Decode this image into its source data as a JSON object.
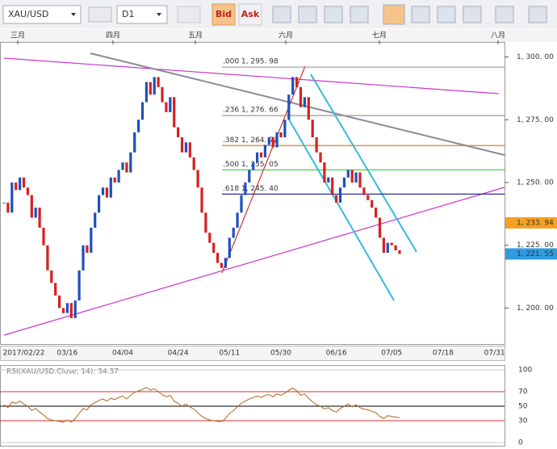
{
  "toolbar": {
    "symbol": "XAU/USD",
    "timeframe": "D1",
    "bid": "Bid",
    "ask": "Ask"
  },
  "chart_data": {
    "type": "candlestick",
    "months": [
      "三月",
      "四月",
      "五月",
      "六月",
      "七月",
      "八月"
    ],
    "categories": [
      null,
      null,
      null,
      null,
      null,
      "2017/02/22",
      null,
      null,
      null,
      null,
      null,
      null,
      null,
      null,
      null,
      null,
      "03/16",
      null,
      null,
      null,
      null,
      null,
      null,
      null,
      null,
      null,
      null,
      null,
      null,
      null,
      "04/04",
      null,
      null,
      null,
      null,
      null,
      null,
      null,
      null,
      null,
      null,
      null,
      null,
      null,
      "04/24",
      null,
      null,
      null,
      null,
      null,
      null,
      null,
      null,
      null,
      null,
      null,
      null,
      "05/11",
      null,
      null,
      null,
      null,
      null,
      null,
      null,
      null,
      null,
      null,
      null,
      null,
      "05/30",
      null,
      null,
      null,
      null,
      null,
      null,
      null,
      null,
      null,
      null,
      null,
      null,
      null,
      "06/16",
      null,
      null,
      null,
      null,
      null,
      null,
      null,
      null,
      null,
      null,
      null,
      null,
      null,
      "07/05",
      null,
      null,
      null,
      null,
      null,
      null,
      null,
      null,
      null,
      null,
      null,
      null,
      "07/18",
      null,
      null,
      null,
      null,
      null,
      null,
      null,
      null,
      null,
      null,
      null,
      null,
      "07/31",
      null
    ],
    "close": [
      1242,
      1238,
      1250,
      1247,
      1252,
      1248,
      1245,
      1236,
      1240,
      1232,
      1225,
      1215,
      1210,
      1205,
      1200,
      1198,
      1202,
      1196,
      1203,
      1215,
      1225,
      1222,
      1232,
      1238,
      1245,
      1248,
      1244,
      1252,
      1250,
      1255,
      1258,
      1254,
      1262,
      1270,
      1275,
      1282,
      1290,
      1285,
      1292,
      1288,
      1282,
      1278,
      1284,
      1272,
      1268,
      1262,
      1266,
      1260,
      1255,
      1248,
      1238,
      1230,
      1226,
      1222,
      1218,
      1216,
      1220,
      1228,
      1232,
      1238,
      1245,
      1250,
      1255,
      1258,
      1262,
      1260,
      1265,
      1268,
      1264,
      1270,
      1268,
      1275,
      1285,
      1292,
      1288,
      1280,
      1284,
      1275,
      1268,
      1262,
      1258,
      1250,
      1252,
      1245,
      1242,
      1248,
      1252,
      1255,
      1250,
      1254,
      1248,
      1245,
      1243,
      1240,
      1236,
      1228,
      1222,
      1226,
      1225,
      1223,
      1221.55,
      null,
      null,
      null,
      null,
      null,
      null,
      null,
      null,
      null,
      null,
      null,
      null,
      null,
      null,
      null,
      null,
      null,
      null,
      null,
      null,
      null,
      null,
      null,
      null,
      null
    ],
    "ylim": [
      1186,
      1305
    ],
    "yticks": [
      {
        "value": 1200,
        "label": "1, 200. 00"
      },
      {
        "value": 1225,
        "label": "1, 225. 00"
      },
      {
        "value": 1250,
        "label": "1, 250. 00"
      },
      {
        "value": 1275,
        "label": "1, 275. 00"
      },
      {
        "value": 1300,
        "label": "1, 300. 00"
      }
    ],
    "up_color": "#1f4fbf",
    "down_color": "#d62020",
    "fib_levels": [
      {
        "label": ".000 1, 295. 98",
        "value": 1295.98,
        "color": "#999999"
      },
      {
        "label": ".236 1, 276. 66",
        "value": 1276.66,
        "color": "#999999"
      },
      {
        "label": ".382 1, 264. 71",
        "value": 1264.71,
        "color": "#e07b1a"
      },
      {
        "label": ".500 1, 255. 05",
        "value": 1255.05,
        "color": "#33cc33"
      },
      {
        "label": ".618 1, 245. 40",
        "value": 1245.4,
        "color": "#1a1a80"
      }
    ],
    "price_tags": [
      {
        "value": 1233.94,
        "label": "1, 233. 94",
        "color": "#f5a020"
      },
      {
        "value": 1221.55,
        "label": "1, 221. 55",
        "color": "#2f9be0"
      }
    ],
    "rsi": {
      "title": "RSI(XAU/USD.Close, 14): 34.37",
      "color": "#b5651d",
      "ylim": [
        0,
        100
      ],
      "yticks": [
        0,
        30,
        50,
        70,
        100
      ],
      "values": [
        52,
        48,
        56,
        54,
        57,
        53,
        50,
        44,
        47,
        42,
        38,
        33,
        31,
        30,
        29,
        28,
        31,
        28,
        33,
        40,
        47,
        45,
        52,
        55,
        58,
        60,
        57,
        61,
        59,
        62,
        64,
        60,
        65,
        69,
        71,
        73,
        76,
        72,
        74,
        70,
        66,
        63,
        65,
        57,
        54,
        50,
        53,
        49,
        46,
        41,
        36,
        33,
        31,
        30,
        29,
        29,
        33,
        40,
        44,
        49,
        54,
        57,
        60,
        62,
        64,
        62,
        65,
        66,
        63,
        67,
        65,
        68,
        72,
        75,
        71,
        65,
        67,
        61,
        56,
        52,
        50,
        46,
        48,
        44,
        42,
        47,
        50,
        53,
        49,
        52,
        48,
        46,
        45,
        43,
        41,
        36,
        33,
        37,
        36,
        35,
        34.37,
        null,
        null,
        null,
        null,
        null,
        null,
        null,
        null,
        null,
        null,
        null,
        null,
        null,
        null,
        null,
        null,
        null,
        null,
        null,
        null,
        null,
        null,
        null,
        null,
        null
      ]
    }
  }
}
